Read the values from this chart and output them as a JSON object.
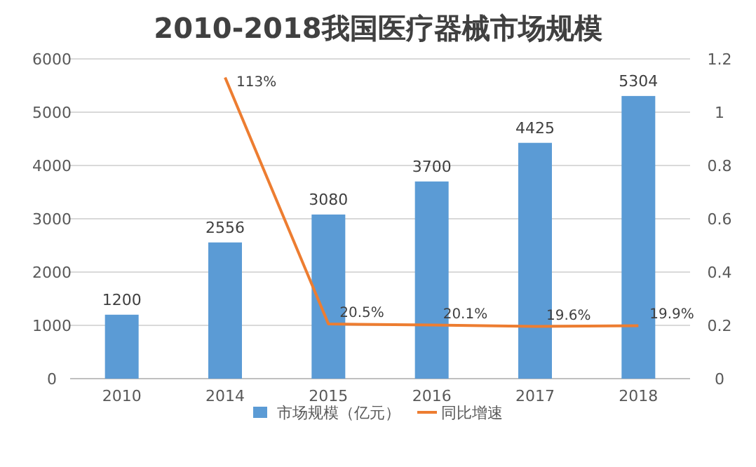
{
  "chart_data": {
    "type": "bar",
    "title": "2010-2018我国医疗器械市场规模",
    "categories": [
      "2010",
      "2014",
      "2015",
      "2016",
      "2017",
      "2018"
    ],
    "series": [
      {
        "name": "市场规模（亿元）",
        "color": "#5b9bd5",
        "values": [
          1200,
          2556,
          3080,
          3700,
          4425,
          5304
        ],
        "value_labels": [
          "1200",
          "2556",
          "3080",
          "3700",
          "4425",
          "5304"
        ]
      },
      {
        "name": "同比增速",
        "type": "line",
        "axis": "y2",
        "color": "#ed7d31",
        "values": [
          null,
          1.13,
          0.205,
          0.201,
          0.196,
          0.199
        ],
        "value_labels": [
          null,
          "113%",
          "20.5%",
          "20.1%",
          "19.6%",
          "19.9%"
        ]
      }
    ],
    "ylim": [
      0,
      6000
    ],
    "yticks": [
      0,
      1000,
      2000,
      3000,
      4000,
      5000,
      6000
    ],
    "y2lim": [
      0,
      1.2
    ],
    "y2ticks": [
      0,
      0.2,
      0.4,
      0.6,
      0.8,
      1,
      1.2
    ],
    "grid": "y",
    "legend": "bottom"
  }
}
